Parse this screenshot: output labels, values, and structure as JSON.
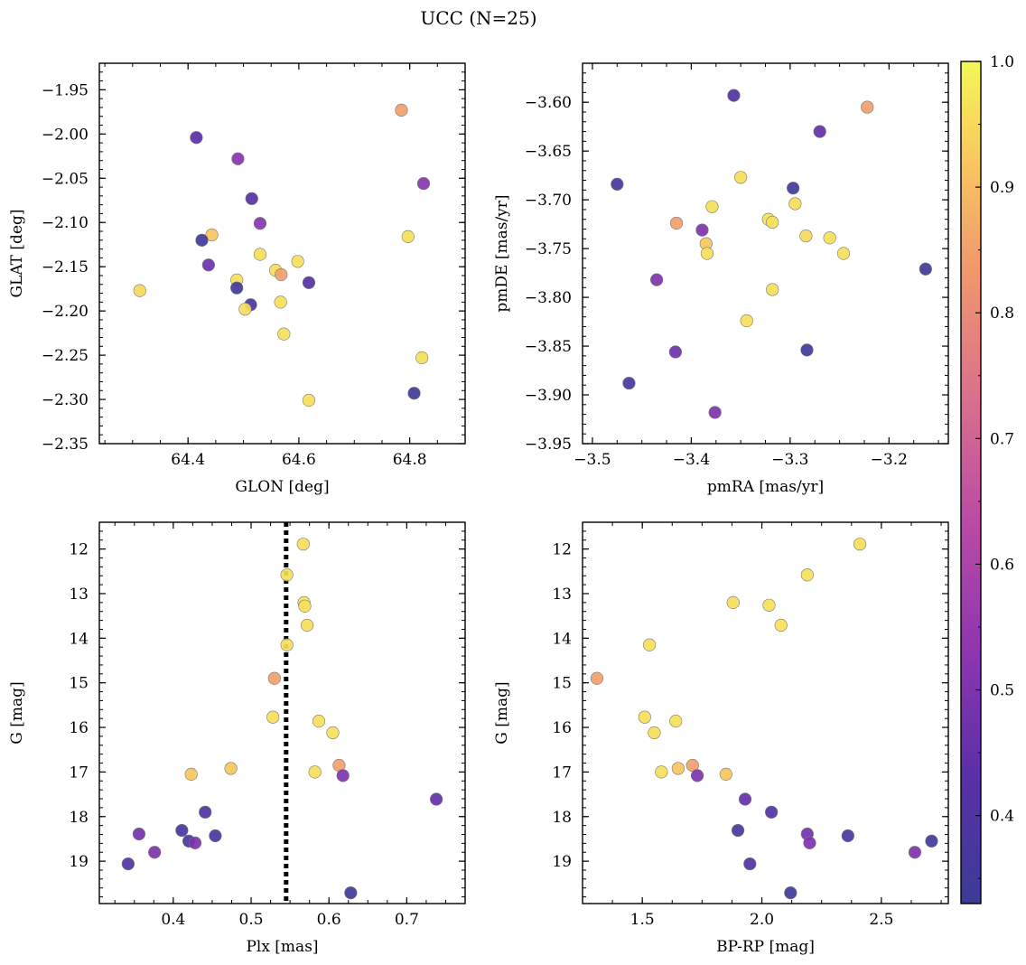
{
  "title": "UCC (N=25)",
  "colorbar": {
    "range": [
      0.33,
      1.0
    ],
    "ticks": [
      0.4,
      0.5,
      0.6,
      0.7,
      0.8,
      0.9,
      1.0
    ],
    "tick_labels": [
      "0.4",
      "0.5",
      "0.6",
      "0.7",
      "0.8",
      "0.9",
      "1.0"
    ],
    "colormap": "plasma"
  },
  "chart_data": [
    {
      "type": "scatter",
      "xlabel": "GLON [deg]",
      "ylabel": "GLAT [deg]",
      "xlim": [
        64.24,
        64.9
      ],
      "ylim": [
        -2.35,
        -1.92
      ],
      "xticks": [
        64.4,
        64.6,
        64.8
      ],
      "xtick_labels": [
        "64.4",
        "64.6",
        "64.8"
      ],
      "yticks": [
        -1.95,
        -2.0,
        -2.05,
        -2.1,
        -2.15,
        -2.2,
        -2.25,
        -2.3,
        -2.35
      ],
      "ytick_labels": [
        "−1.95",
        "−2.00",
        "−2.05",
        "−2.10",
        "−2.15",
        "−2.20",
        "−2.25",
        "−2.30",
        "−2.35"
      ],
      "points": [
        {
          "x": 64.785,
          "y": -1.973,
          "c": 0.85
        },
        {
          "x": 64.415,
          "y": -2.004,
          "c": 0.43
        },
        {
          "x": 64.49,
          "y": -2.028,
          "c": 0.52
        },
        {
          "x": 64.825,
          "y": -2.056,
          "c": 0.52
        },
        {
          "x": 64.515,
          "y": -2.073,
          "c": 0.42
        },
        {
          "x": 64.53,
          "y": -2.101,
          "c": 0.52
        },
        {
          "x": 64.443,
          "y": -2.114,
          "c": 0.92
        },
        {
          "x": 64.425,
          "y": -2.12,
          "c": 0.35
        },
        {
          "x": 64.797,
          "y": -2.116,
          "c": 0.96
        },
        {
          "x": 64.53,
          "y": -2.136,
          "c": 0.96
        },
        {
          "x": 64.598,
          "y": -2.144,
          "c": 0.96
        },
        {
          "x": 64.437,
          "y": -2.148,
          "c": 0.47
        },
        {
          "x": 64.558,
          "y": -2.154,
          "c": 0.96
        },
        {
          "x": 64.568,
          "y": -2.159,
          "c": 0.85
        },
        {
          "x": 64.488,
          "y": -2.165,
          "c": 0.96
        },
        {
          "x": 64.618,
          "y": -2.168,
          "c": 0.4
        },
        {
          "x": 64.313,
          "y": -2.177,
          "c": 0.95
        },
        {
          "x": 64.488,
          "y": -2.174,
          "c": 0.35
        },
        {
          "x": 64.567,
          "y": -2.19,
          "c": 0.96
        },
        {
          "x": 64.513,
          "y": -2.193,
          "c": 0.38
        },
        {
          "x": 64.503,
          "y": -2.198,
          "c": 0.96
        },
        {
          "x": 64.573,
          "y": -2.226,
          "c": 0.96
        },
        {
          "x": 64.822,
          "y": -2.253,
          "c": 0.96
        },
        {
          "x": 64.808,
          "y": -2.293,
          "c": 0.35
        },
        {
          "x": 64.618,
          "y": -2.301,
          "c": 0.96
        }
      ]
    },
    {
      "type": "scatter",
      "xlabel": "pmRA [mas/yr]",
      "ylabel": "pmDE [mas/yr]",
      "xlim": [
        -3.51,
        -3.14
      ],
      "ylim": [
        -3.95,
        -3.56
      ],
      "xticks": [
        -3.5,
        -3.4,
        -3.3,
        -3.2
      ],
      "xtick_labels": [
        "−3.5",
        "−3.4",
        "−3.3",
        "−3.2"
      ],
      "yticks": [
        -3.6,
        -3.65,
        -3.7,
        -3.75,
        -3.8,
        -3.85,
        -3.9,
        -3.95
      ],
      "ytick_labels": [
        "−3.60",
        "−3.65",
        "−3.70",
        "−3.75",
        "−3.80",
        "−3.85",
        "−3.90",
        "−3.95"
      ],
      "points": [
        {
          "x": -3.357,
          "y": -3.593,
          "c": 0.4
        },
        {
          "x": -3.222,
          "y": -3.605,
          "c": 0.85
        },
        {
          "x": -3.27,
          "y": -3.63,
          "c": 0.45
        },
        {
          "x": -3.35,
          "y": -3.677,
          "c": 0.96
        },
        {
          "x": -3.475,
          "y": -3.684,
          "c": 0.38
        },
        {
          "x": -3.297,
          "y": -3.688,
          "c": 0.35
        },
        {
          "x": -3.295,
          "y": -3.704,
          "c": 0.96
        },
        {
          "x": -3.379,
          "y": -3.707,
          "c": 0.96
        },
        {
          "x": -3.322,
          "y": -3.72,
          "c": 0.96
        },
        {
          "x": -3.318,
          "y": -3.723,
          "c": 0.96
        },
        {
          "x": -3.415,
          "y": -3.724,
          "c": 0.85
        },
        {
          "x": -3.389,
          "y": -3.731,
          "c": 0.5
        },
        {
          "x": -3.284,
          "y": -3.737,
          "c": 0.95
        },
        {
          "x": -3.26,
          "y": -3.739,
          "c": 0.96
        },
        {
          "x": -3.385,
          "y": -3.745,
          "c": 0.92
        },
        {
          "x": -3.246,
          "y": -3.755,
          "c": 0.96
        },
        {
          "x": -3.384,
          "y": -3.755,
          "c": 0.96
        },
        {
          "x": -3.163,
          "y": -3.771,
          "c": 0.35
        },
        {
          "x": -3.435,
          "y": -3.782,
          "c": 0.5
        },
        {
          "x": -3.318,
          "y": -3.792,
          "c": 0.96
        },
        {
          "x": -3.344,
          "y": -3.824,
          "c": 0.96
        },
        {
          "x": -3.283,
          "y": -3.854,
          "c": 0.35
        },
        {
          "x": -3.416,
          "y": -3.856,
          "c": 0.47
        },
        {
          "x": -3.463,
          "y": -3.888,
          "c": 0.38
        },
        {
          "x": -3.376,
          "y": -3.918,
          "c": 0.5
        }
      ]
    },
    {
      "type": "scatter",
      "xlabel": "Plx [mas]",
      "ylabel": "G [mag]",
      "xlim": [
        0.305,
        0.775
      ],
      "ylim": [
        19.95,
        11.4
      ],
      "xticks": [
        0.4,
        0.5,
        0.6,
        0.7
      ],
      "xtick_labels": [
        "0.4",
        "0.5",
        "0.6",
        "0.7"
      ],
      "yticks": [
        12,
        13,
        14,
        15,
        16,
        17,
        18,
        19
      ],
      "ytick_labels": [
        "12",
        "13",
        "14",
        "15",
        "16",
        "17",
        "18",
        "19"
      ],
      "vline": {
        "x": 0.545,
        "style": "dotted"
      },
      "points": [
        {
          "x": 0.567,
          "y": 11.89,
          "c": 0.96
        },
        {
          "x": 0.546,
          "y": 12.58,
          "c": 0.96
        },
        {
          "x": 0.568,
          "y": 13.2,
          "c": 0.96
        },
        {
          "x": 0.569,
          "y": 13.28,
          "c": 0.96
        },
        {
          "x": 0.572,
          "y": 13.71,
          "c": 0.96
        },
        {
          "x": 0.546,
          "y": 14.15,
          "c": 0.96
        },
        {
          "x": 0.53,
          "y": 14.9,
          "c": 0.85
        },
        {
          "x": 0.528,
          "y": 15.77,
          "c": 0.96
        },
        {
          "x": 0.587,
          "y": 15.86,
          "c": 0.96
        },
        {
          "x": 0.605,
          "y": 16.12,
          "c": 0.96
        },
        {
          "x": 0.613,
          "y": 16.85,
          "c": 0.85
        },
        {
          "x": 0.474,
          "y": 16.92,
          "c": 0.92
        },
        {
          "x": 0.582,
          "y": 17.0,
          "c": 0.96
        },
        {
          "x": 0.423,
          "y": 17.05,
          "c": 0.92
        },
        {
          "x": 0.618,
          "y": 17.08,
          "c": 0.5
        },
        {
          "x": 0.738,
          "y": 17.61,
          "c": 0.45
        },
        {
          "x": 0.441,
          "y": 17.9,
          "c": 0.4
        },
        {
          "x": 0.411,
          "y": 18.31,
          "c": 0.38
        },
        {
          "x": 0.356,
          "y": 18.39,
          "c": 0.48
        },
        {
          "x": 0.454,
          "y": 18.43,
          "c": 0.38
        },
        {
          "x": 0.42,
          "y": 18.55,
          "c": 0.35
        },
        {
          "x": 0.428,
          "y": 18.59,
          "c": 0.5
        },
        {
          "x": 0.376,
          "y": 18.8,
          "c": 0.5
        },
        {
          "x": 0.342,
          "y": 19.06,
          "c": 0.4
        },
        {
          "x": 0.628,
          "y": 19.71,
          "c": 0.35
        }
      ]
    },
    {
      "type": "scatter",
      "xlabel": "BP-RP [mag]",
      "ylabel": "G [mag]",
      "xlim": [
        1.25,
        2.78
      ],
      "ylim": [
        19.95,
        11.4
      ],
      "xticks": [
        1.5,
        2.0,
        2.5
      ],
      "xtick_labels": [
        "1.5",
        "2.0",
        "2.5"
      ],
      "yticks": [
        12,
        13,
        14,
        15,
        16,
        17,
        18,
        19
      ],
      "ytick_labels": [
        "12",
        "13",
        "14",
        "15",
        "16",
        "17",
        "18",
        "19"
      ],
      "points": [
        {
          "x": 2.41,
          "y": 11.89,
          "c": 0.96
        },
        {
          "x": 2.19,
          "y": 12.58,
          "c": 0.96
        },
        {
          "x": 1.88,
          "y": 13.2,
          "c": 0.96
        },
        {
          "x": 2.03,
          "y": 13.26,
          "c": 0.96
        },
        {
          "x": 2.08,
          "y": 13.71,
          "c": 0.96
        },
        {
          "x": 1.53,
          "y": 14.15,
          "c": 0.96
        },
        {
          "x": 1.31,
          "y": 14.9,
          "c": 0.85
        },
        {
          "x": 1.51,
          "y": 15.77,
          "c": 0.96
        },
        {
          "x": 1.64,
          "y": 15.86,
          "c": 0.96
        },
        {
          "x": 1.55,
          "y": 16.12,
          "c": 0.96
        },
        {
          "x": 1.71,
          "y": 16.85,
          "c": 0.85
        },
        {
          "x": 1.65,
          "y": 16.92,
          "c": 0.92
        },
        {
          "x": 1.58,
          "y": 17.0,
          "c": 0.96
        },
        {
          "x": 1.85,
          "y": 17.05,
          "c": 0.92
        },
        {
          "x": 1.73,
          "y": 17.08,
          "c": 0.5
        },
        {
          "x": 1.93,
          "y": 17.61,
          "c": 0.45
        },
        {
          "x": 2.04,
          "y": 17.9,
          "c": 0.4
        },
        {
          "x": 1.9,
          "y": 18.31,
          "c": 0.38
        },
        {
          "x": 2.19,
          "y": 18.39,
          "c": 0.48
        },
        {
          "x": 2.36,
          "y": 18.43,
          "c": 0.38
        },
        {
          "x": 2.71,
          "y": 18.55,
          "c": 0.35
        },
        {
          "x": 2.2,
          "y": 18.59,
          "c": 0.5
        },
        {
          "x": 2.64,
          "y": 18.8,
          "c": 0.5
        },
        {
          "x": 1.95,
          "y": 19.06,
          "c": 0.4
        },
        {
          "x": 2.12,
          "y": 19.71,
          "c": 0.35
        }
      ]
    }
  ]
}
